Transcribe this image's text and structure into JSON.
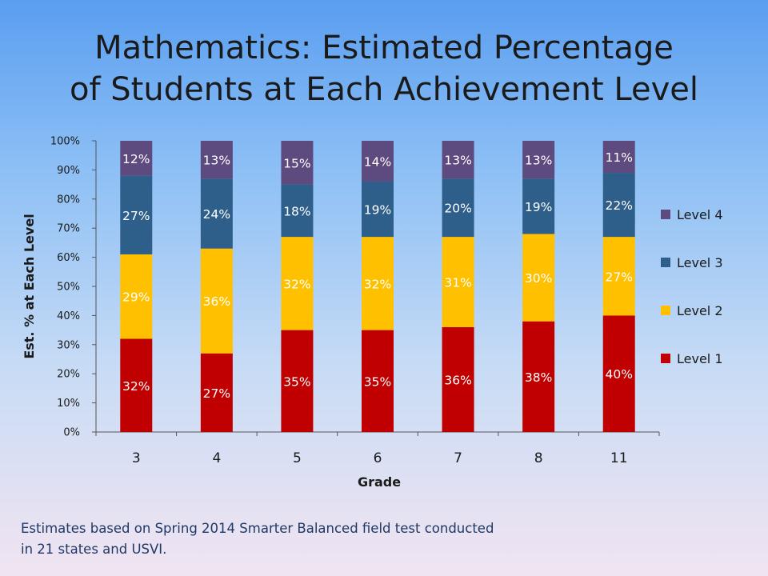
{
  "title_line1": "Mathematics:  Estimated Percentage",
  "title_line2": "of Students at Each Achievement Level",
  "footnote_line1": "Estimates based on Spring 2014 Smarter Balanced field test conducted",
  "footnote_line2": "in 21 states and USVI.",
  "chart_data": {
    "type": "bar",
    "stacked": true,
    "categories": [
      "3",
      "4",
      "5",
      "6",
      "7",
      "8",
      "11"
    ],
    "series": [
      {
        "name": "Level 1",
        "color": "#c00000",
        "values": [
          32,
          27,
          35,
          35,
          36,
          38,
          40
        ]
      },
      {
        "name": "Level 2",
        "color": "#ffc000",
        "values": [
          29,
          36,
          32,
          32,
          31,
          30,
          27
        ]
      },
      {
        "name": "Level 3",
        "color": "#2e5f8a",
        "values": [
          27,
          24,
          18,
          19,
          20,
          19,
          22
        ]
      },
      {
        "name": "Level 4",
        "color": "#5d4a7e",
        "values": [
          12,
          13,
          15,
          14,
          13,
          13,
          11
        ]
      }
    ],
    "xlabel": "Grade",
    "ylabel": "Est. % at Each Level",
    "ylim": [
      0,
      100
    ],
    "yticks": [
      "0%",
      "10%",
      "20%",
      "30%",
      "40%",
      "50%",
      "60%",
      "70%",
      "80%",
      "90%",
      "100%"
    ],
    "legend_position": "right",
    "grid": false
  }
}
